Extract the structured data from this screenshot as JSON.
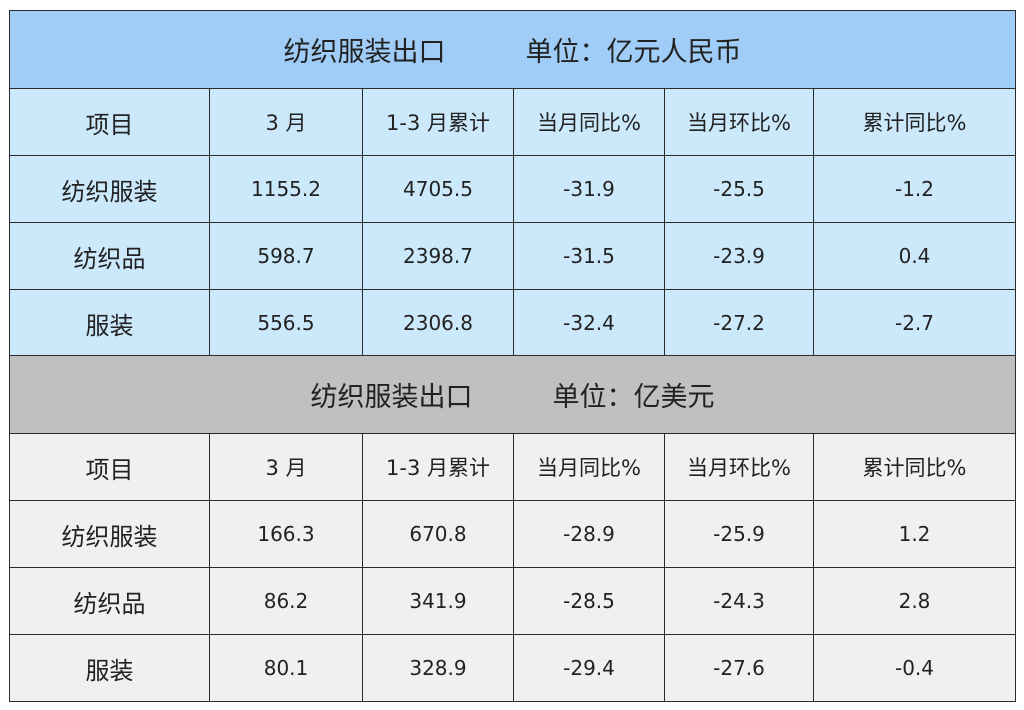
{
  "tables": [
    {
      "title": "纺织服装出口",
      "unit": "单位：亿元人民币",
      "header_color": "#9fcdf7",
      "body_color": "#cce9fb",
      "columns": [
        "项目",
        "3 月",
        "1-3 月累计",
        "当月同比%",
        "当月环比%",
        "累计同比%"
      ],
      "rows": [
        [
          "纺织服装",
          "1155.2",
          "4705.5",
          "-31.9",
          "-25.5",
          "-1.2"
        ],
        [
          "纺织品",
          "598.7",
          "2398.7",
          "-31.5",
          "-23.9",
          "0.4"
        ],
        [
          "服装",
          "556.5",
          "2306.8",
          "-32.4",
          "-27.2",
          "-2.7"
        ]
      ]
    },
    {
      "title": "纺织服装出口",
      "unit": "单位：亿美元",
      "header_color": "#c0c0c0",
      "body_color": "#f0f0f0",
      "columns": [
        "项目",
        "3 月",
        "1-3 月累计",
        "当月同比%",
        "当月环比%",
        "累计同比%"
      ],
      "rows": [
        [
          "纺织服装",
          "166.3",
          "670.8",
          "-28.9",
          "-25.9",
          "1.2"
        ],
        [
          "纺织品",
          "86.2",
          "341.9",
          "-28.5",
          "-24.3",
          "2.8"
        ],
        [
          "服装",
          "80.1",
          "328.9",
          "-29.4",
          "-27.6",
          "-0.4"
        ]
      ]
    }
  ]
}
